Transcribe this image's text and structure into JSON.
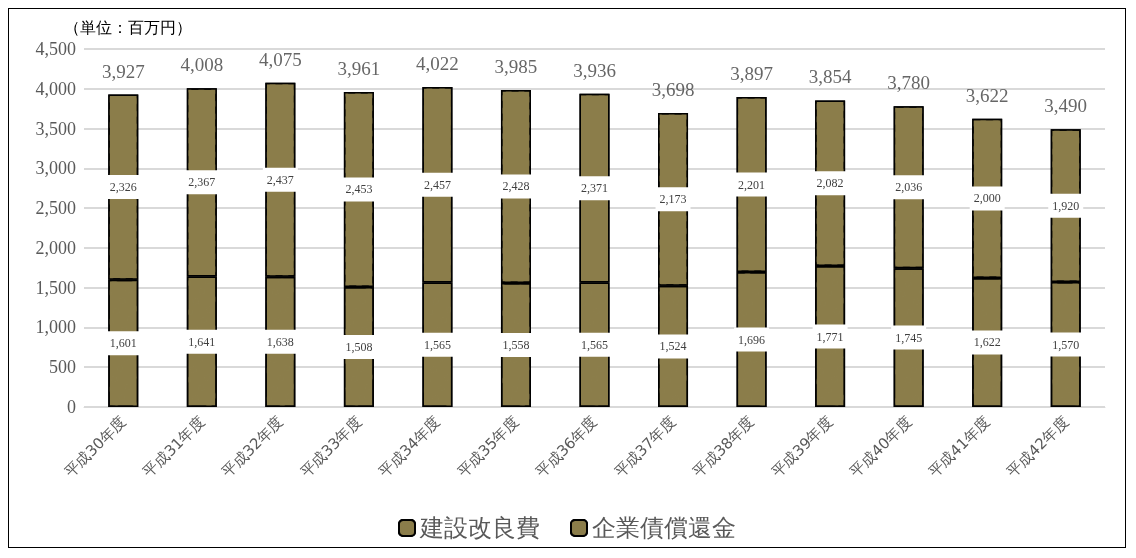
{
  "chart_data": {
    "type": "bar",
    "stacked": true,
    "ylabel": "（単位：百万円）",
    "categories": [
      "平成30年度",
      "平成31年度",
      "平成32年度",
      "平成33年度",
      "平成34年度",
      "平成35年度",
      "平成36年度",
      "平成37年度",
      "平成38年度",
      "平成39年度",
      "平成40年度",
      "平成41年度",
      "平成42年度"
    ],
    "series": [
      {
        "name": "建設改良費",
        "color": "#8b7d4a",
        "values": [
          1601,
          1641,
          1638,
          1508,
          1565,
          1558,
          1565,
          1524,
          1696,
          1771,
          1745,
          1622,
          1570
        ],
        "value_labels": [
          "1,601",
          "1,641",
          "1,638",
          "1,508",
          "1,565",
          "1,558",
          "1,565",
          "1,524",
          "1,696",
          "1,771",
          "1,745",
          "1,622",
          "1,570"
        ]
      },
      {
        "name": "企業債償還金",
        "color": "#8b7d4a",
        "values": [
          2326,
          2367,
          2437,
          2453,
          2457,
          2428,
          2371,
          2173,
          2201,
          2082,
          2036,
          2000,
          1920
        ],
        "value_labels": [
          "2,326",
          "2,367",
          "2,437",
          "2,453",
          "2,457",
          "2,428",
          "2,371",
          "2,173",
          "2,201",
          "2,082",
          "2,036",
          "2,000",
          "1,920"
        ]
      }
    ],
    "totals": [
      "3,927",
      "4,008",
      "4,075",
      "3,961",
      "4,022",
      "3,985",
      "3,936",
      "3,698",
      "3,897",
      "3,854",
      "3,780",
      "3,622",
      "3,490"
    ],
    "ylim": [
      0,
      4500
    ],
    "yticks": [
      0,
      500,
      {
        "value": 1000,
        "label": "1,000"
      },
      {
        "value": 1500,
        "label": "1,500"
      },
      {
        "value": 2000,
        "label": "2,000"
      },
      {
        "value": 2500,
        "label": "2,500"
      },
      {
        "value": 3000,
        "label": "3,000"
      },
      {
        "value": 3500,
        "label": "3,500"
      },
      {
        "value": 4000,
        "label": "4,000"
      },
      {
        "value": 4500,
        "label": "4,500"
      }
    ],
    "grid": "y",
    "legend": "bottom"
  }
}
